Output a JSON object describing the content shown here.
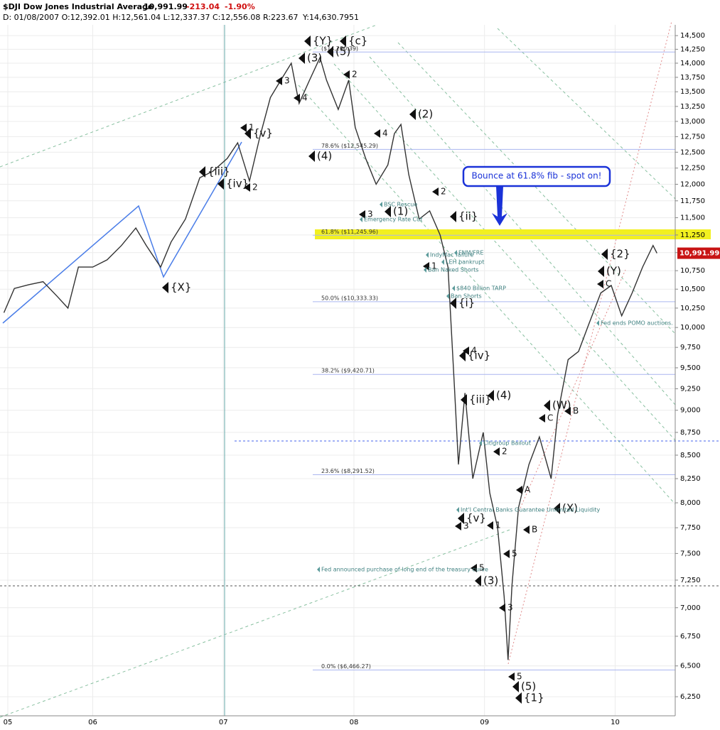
{
  "header": {
    "symbol": "$DJI Dow Jones Industrial Average",
    "last": "10,991.99",
    "change": "-213.04",
    "change_pct": "-1.90%",
    "ohlc": "D: 01/08/2007 O:12,392.01 H:12,561.04 L:12,337.37 C:12,556.08",
    "range": "R:223.67",
    "cursor": "Y:14,630.7951"
  },
  "chart_data": {
    "type": "line",
    "log_scale": true,
    "grid": true,
    "color": "#333333",
    "x": [
      2005.32,
      2005.4,
      2005.51,
      2005.62,
      2005.73,
      2005.81,
      2005.89,
      2006.0,
      2006.11,
      2006.22,
      2006.33,
      2006.41,
      2006.52,
      2006.6,
      2006.71,
      2006.82,
      2006.92,
      2007.03,
      2007.11,
      2007.2,
      2007.28,
      2007.36,
      2007.44,
      2007.52,
      2007.58,
      2007.66,
      2007.74,
      2007.79,
      2007.88,
      2007.96,
      2008.01,
      2008.09,
      2008.17,
      2008.26,
      2008.31,
      2008.36,
      2008.42,
      2008.5,
      2008.58,
      2008.66,
      2008.72,
      2008.77,
      2008.8,
      2008.85,
      2008.91,
      2008.99,
      2009.04,
      2009.1,
      2009.15,
      2009.18,
      2009.21,
      2009.26,
      2009.34,
      2009.42,
      2009.51,
      2009.56,
      2009.64,
      2009.72,
      2009.8,
      2009.89,
      2009.97,
      2010.05,
      2010.13,
      2010.21,
      2010.29,
      2010.32
    ],
    "values": [
      10190,
      10510,
      10560,
      10600,
      10400,
      10250,
      10800,
      10800,
      10900,
      11100,
      11350,
      11100,
      10800,
      11150,
      11480,
      12100,
      12200,
      12400,
      12650,
      12050,
      12750,
      13400,
      13700,
      14000,
      13300,
      13700,
      14100,
      13700,
      13200,
      13700,
      12900,
      12400,
      12000,
      12300,
      12800,
      12950,
      12150,
      11480,
      11600,
      11250,
      10800,
      9250,
      8400,
      9200,
      8250,
      8750,
      8100,
      7750,
      7100,
      6550,
      7200,
      7950,
      8400,
      8700,
      8250,
      8950,
      9600,
      9700,
      10050,
      10450,
      10550,
      10150,
      10450,
      10800,
      11100,
      10991.99
    ],
    "xlim": [
      2005.29,
      2010.46
    ],
    "xticks": [
      {
        "value": 2005.35,
        "label": "05"
      },
      {
        "value": 2006,
        "label": "06"
      },
      {
        "value": 2007,
        "label": "07"
      },
      {
        "value": 2008,
        "label": "08"
      },
      {
        "value": 2009,
        "label": "09"
      },
      {
        "value": 2010,
        "label": "10"
      }
    ],
    "ylim": [
      6100,
      14700
    ],
    "yticks": [
      {
        "value": 6250,
        "label": "6,250"
      },
      {
        "value": 6500,
        "label": "6,500"
      },
      {
        "value": 6750,
        "label": "6,750"
      },
      {
        "value": 7000,
        "label": "7,000"
      },
      {
        "value": 7250,
        "label": "7,250"
      },
      {
        "value": 7500,
        "label": "7,500"
      },
      {
        "value": 7750,
        "label": "7,750"
      },
      {
        "value": 8000,
        "label": "8,000"
      },
      {
        "value": 8250,
        "label": "8,250"
      },
      {
        "value": 8500,
        "label": "8,500"
      },
      {
        "value": 8750,
        "label": "8,750"
      },
      {
        "value": 9000,
        "label": "9,000"
      },
      {
        "value": 9250,
        "label": "9,250"
      },
      {
        "value": 9500,
        "label": "9,500"
      },
      {
        "value": 9750,
        "label": "9,750"
      },
      {
        "value": 10000,
        "label": "10,000"
      },
      {
        "value": 10250,
        "label": "10,250"
      },
      {
        "value": 10500,
        "label": "10,500"
      },
      {
        "value": 10750,
        "label": "10,750"
      },
      {
        "value": 11000,
        "label": "11,000"
      },
      {
        "value": 11250,
        "label": "11,250"
      },
      {
        "value": 11500,
        "label": "11,500"
      },
      {
        "value": 11750,
        "label": "11,750"
      },
      {
        "value": 12000,
        "label": "12,000"
      },
      {
        "value": 12250,
        "label": "12,250"
      },
      {
        "value": 12500,
        "label": "12,500"
      },
      {
        "value": 12750,
        "label": "12,750"
      },
      {
        "value": 13000,
        "label": "13,000"
      },
      {
        "value": 13250,
        "label": "13,250"
      },
      {
        "value": 13500,
        "label": "13,500"
      },
      {
        "value": 13750,
        "label": "13,750"
      },
      {
        "value": 14000,
        "label": "14,000"
      },
      {
        "value": 14250,
        "label": "14,250"
      },
      {
        "value": 14500,
        "label": "14,500"
      }
    ],
    "price_tag": "10,991.99",
    "fib_levels": [
      {
        "value": 14200.39,
        "label": "($14,200.39)"
      },
      {
        "value": 12545.29,
        "label": "78.6% ($12,545.29)"
      },
      {
        "value": 11245.96,
        "label": "61.8% ($11,245.96)"
      },
      {
        "value": 10333.33,
        "label": "50.0% ($10,333.33)"
      },
      {
        "value": 9420.71,
        "label": "38.2% ($9,420.71)"
      },
      {
        "value": 8291.52,
        "label": "23.6% ($8,291.52)"
      },
      {
        "value": 6466.27,
        "label": "0.0% ($6,466.27)"
      }
    ],
    "callout": "Bounce at 61.8% fib - spot on!",
    "wave_labels": [
      "{Y}",
      "{c}",
      "(5)",
      "(3)",
      "3",
      "2",
      "4",
      "(2)",
      "1",
      "{v}",
      "4",
      "(4)",
      "{iii}",
      "{iv}",
      "2",
      "2",
      "3",
      "(1)",
      "{ii}",
      "{X}",
      "1",
      "{i}",
      "{2}",
      "(Y)",
      "C",
      "{iv}",
      "4",
      "{iii}",
      "(4)",
      "(W)",
      "B",
      "C",
      "2",
      "A",
      "(X)",
      "{v}",
      "3",
      "1",
      "B",
      "5",
      "5",
      "(3)",
      "3",
      "5",
      "(5)",
      "{1}"
    ],
    "events": [
      "BSC Rescue",
      "Emergency Rate Cut",
      "IndyMac failure",
      "FNM/FRE",
      "LEH bankrupt",
      "Ban Naked Shorts",
      "$840 Billion TARP",
      "Ban Shorts",
      "Fed ends POMO auctions.",
      "Citigroup Bailout",
      "Int'l Central Banks Guarantee Unlimited Liquidity",
      "Fed announced purchase of long end of the treasury curve"
    ]
  }
}
